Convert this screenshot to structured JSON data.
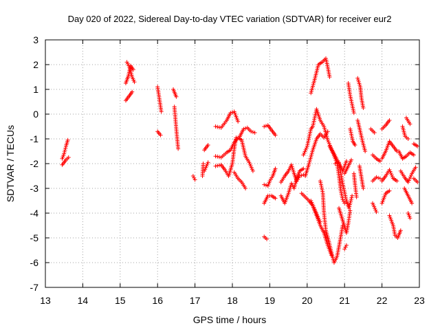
{
  "chart_data": {
    "type": "scatter",
    "title": "Day 020 of 2022, Sidereal Day-to-day VTEC variation (SDTVAR) for receiver eur2",
    "xlabel": "GPS time / hours",
    "ylabel": "SDTVAR / TECUs",
    "xlim": [
      13,
      23
    ],
    "ylim": [
      -7,
      3
    ],
    "xticks": [
      "13",
      "14",
      "15",
      "16",
      "17",
      "18",
      "19",
      "20",
      "21",
      "22",
      "23"
    ],
    "yticks": [
      "3",
      "2",
      "1",
      "0",
      "-1",
      "-2",
      "-3",
      "-4",
      "-5",
      "-6",
      "-7"
    ],
    "grid": true,
    "marker": "+",
    "color": "#ff0000",
    "segments": [
      [
        [
          13.45,
          -1.8
        ],
        [
          13.5,
          -1.6
        ],
        [
          13.55,
          -1.3
        ],
        [
          13.6,
          -1.05
        ]
      ],
      [
        [
          13.45,
          -2.05
        ],
        [
          13.55,
          -1.85
        ],
        [
          13.62,
          -1.75
        ]
      ],
      [
        [
          15.15,
          0.55
        ],
        [
          15.25,
          0.75
        ],
        [
          15.32,
          0.9
        ]
      ],
      [
        [
          15.15,
          1.25
        ],
        [
          15.22,
          1.55
        ],
        [
          15.28,
          1.95
        ],
        [
          15.35,
          1.8
        ]
      ],
      [
        [
          15.18,
          2.1
        ],
        [
          15.25,
          1.9
        ],
        [
          15.32,
          1.5
        ],
        [
          15.38,
          1.3
        ]
      ],
      [
        [
          16.0,
          1.1
        ],
        [
          16.06,
          0.5
        ],
        [
          16.1,
          0.1
        ]
      ],
      [
        [
          16.0,
          -0.7
        ],
        [
          16.08,
          -0.85
        ]
      ],
      [
        [
          16.42,
          1.0
        ],
        [
          16.5,
          0.7
        ]
      ],
      [
        [
          16.45,
          0.3
        ],
        [
          16.5,
          -0.6
        ],
        [
          16.55,
          -1.4
        ]
      ],
      [
        [
          16.95,
          -2.5
        ],
        [
          17.0,
          -2.65
        ]
      ],
      [
        [
          17.2,
          -2.5
        ],
        [
          17.22,
          -2.0
        ]
      ],
      [
        [
          17.25,
          -1.45
        ],
        [
          17.35,
          -1.25
        ]
      ],
      [
        [
          17.25,
          -2.3
        ],
        [
          17.35,
          -1.95
        ]
      ],
      [
        [
          17.55,
          -0.5
        ],
        [
          17.7,
          -0.55
        ],
        [
          17.85,
          -0.25
        ],
        [
          17.95,
          0.05
        ],
        [
          18.05,
          0.1
        ],
        [
          18.15,
          -0.3
        ]
      ],
      [
        [
          17.55,
          -1.7
        ],
        [
          17.7,
          -1.75
        ],
        [
          17.85,
          -1.55
        ],
        [
          17.95,
          -1.45
        ],
        [
          18.05,
          -1.15
        ],
        [
          18.15,
          -0.95
        ],
        [
          18.25,
          -1.05
        ],
        [
          18.35,
          -1.7
        ],
        [
          18.45,
          -1.95
        ],
        [
          18.55,
          -2.3
        ]
      ],
      [
        [
          17.55,
          -2.1
        ],
        [
          17.7,
          -2.05
        ],
        [
          17.8,
          -2.25
        ],
        [
          17.9,
          -2.5
        ],
        [
          18.0,
          -2.0
        ],
        [
          18.05,
          -1.4
        ],
        [
          18.1,
          -0.95
        ]
      ],
      [
        [
          18.05,
          -2.35
        ],
        [
          18.15,
          -2.6
        ],
        [
          18.25,
          -2.75
        ],
        [
          18.35,
          -3.0
        ]
      ],
      [
        [
          18.2,
          -0.9
        ],
        [
          18.3,
          -0.6
        ],
        [
          18.4,
          -0.55
        ],
        [
          18.5,
          -0.7
        ],
        [
          18.6,
          -0.75
        ]
      ],
      [
        [
          18.85,
          -2.85
        ],
        [
          18.95,
          -2.9
        ],
        [
          19.0,
          -2.7
        ],
        [
          19.08,
          -2.5
        ],
        [
          19.15,
          -2.2
        ]
      ],
      [
        [
          18.85,
          -0.5
        ],
        [
          18.95,
          -0.45
        ],
        [
          19.05,
          -0.65
        ],
        [
          19.15,
          -0.85
        ]
      ],
      [
        [
          18.85,
          -4.95
        ],
        [
          18.92,
          -5.05
        ]
      ],
      [
        [
          18.85,
          -3.6
        ],
        [
          18.95,
          -3.3
        ],
        [
          19.05,
          -3.3
        ],
        [
          19.15,
          -3.4
        ]
      ],
      [
        [
          19.3,
          -2.75
        ],
        [
          19.4,
          -2.5
        ],
        [
          19.5,
          -2.3
        ],
        [
          19.58,
          -2.05
        ],
        [
          19.65,
          -2.4
        ],
        [
          19.72,
          -2.7
        ],
        [
          19.8,
          -2.5
        ],
        [
          19.9,
          -2.45
        ]
      ],
      [
        [
          19.3,
          -3.3
        ],
        [
          19.4,
          -3.6
        ],
        [
          19.5,
          -3.2
        ],
        [
          19.58,
          -2.8
        ],
        [
          19.65,
          -3.0
        ],
        [
          19.72,
          -2.6
        ],
        [
          19.8,
          -2.3
        ],
        [
          19.9,
          -2.2
        ]
      ],
      [
        [
          19.85,
          -3.2
        ],
        [
          19.95,
          -3.35
        ],
        [
          20.05,
          -3.5
        ],
        [
          20.15,
          -3.7
        ],
        [
          20.25,
          -4.1
        ],
        [
          20.35,
          -4.5
        ],
        [
          20.45,
          -4.8
        ],
        [
          20.55,
          -5.3
        ],
        [
          20.65,
          -5.7
        ]
      ],
      [
        [
          19.9,
          -1.65
        ],
        [
          20.0,
          -1.3
        ],
        [
          20.1,
          -0.6
        ],
        [
          20.15,
          -0.5
        ],
        [
          20.25,
          0.2
        ],
        [
          20.35,
          -0.25
        ],
        [
          20.45,
          -0.5
        ],
        [
          20.55,
          -1.05
        ],
        [
          20.65,
          -1.4
        ],
        [
          20.75,
          -1.7
        ],
        [
          20.85,
          -2.0
        ],
        [
          20.95,
          -2.3
        ],
        [
          21.05,
          -1.9
        ]
      ],
      [
        [
          20.1,
          0.85
        ],
        [
          20.2,
          1.4
        ],
        [
          20.3,
          2.0
        ],
        [
          20.4,
          2.1
        ],
        [
          20.5,
          2.25
        ],
        [
          20.55,
          1.9
        ],
        [
          20.6,
          1.5
        ]
      ],
      [
        [
          19.95,
          -2.5
        ],
        [
          20.05,
          -2.0
        ],
        [
          20.15,
          -1.45
        ],
        [
          20.25,
          -1.0
        ],
        [
          20.35,
          -0.8
        ],
        [
          20.45,
          -0.95
        ],
        [
          20.55,
          -0.7
        ]
      ],
      [
        [
          20.1,
          -3.5
        ],
        [
          20.2,
          -3.85
        ],
        [
          20.3,
          -4.2
        ],
        [
          20.35,
          -4.35
        ]
      ],
      [
        [
          20.35,
          -2.7
        ],
        [
          20.42,
          -3.2
        ],
        [
          20.45,
          -4.0
        ],
        [
          20.5,
          -4.7
        ],
        [
          20.58,
          -5.15
        ],
        [
          20.65,
          -5.6
        ],
        [
          20.72,
          -6.0
        ],
        [
          20.8,
          -5.75
        ],
        [
          20.88,
          -5.1
        ],
        [
          20.95,
          -4.5
        ]
      ],
      [
        [
          20.6,
          -1.3
        ],
        [
          20.7,
          -1.6
        ],
        [
          20.8,
          -2.0
        ],
        [
          20.85,
          -2.5
        ],
        [
          20.9,
          -3.1
        ],
        [
          20.95,
          -3.45
        ],
        [
          21.0,
          -3.6
        ]
      ],
      [
        [
          20.75,
          -2.0
        ],
        [
          20.85,
          -1.95
        ],
        [
          20.95,
          -2.8
        ],
        [
          21.05,
          -3.5
        ],
        [
          21.12,
          -3.8
        ],
        [
          21.2,
          -3.3
        ]
      ],
      [
        [
          20.85,
          -3.8
        ],
        [
          20.95,
          -4.3
        ],
        [
          21.05,
          -4.8
        ],
        [
          21.1,
          -4.4
        ],
        [
          21.15,
          -3.9
        ]
      ],
      [
        [
          21.0,
          -5.45
        ],
        [
          21.05,
          -5.3
        ]
      ],
      [
        [
          21.0,
          -2.4
        ],
        [
          21.1,
          -2.1
        ],
        [
          21.18,
          -1.85
        ]
      ],
      [
        [
          21.1,
          1.25
        ],
        [
          21.15,
          0.75
        ],
        [
          21.2,
          0.4
        ],
        [
          21.25,
          0.05
        ]
      ],
      [
        [
          21.15,
          -0.6
        ],
        [
          21.22,
          -1.1
        ],
        [
          21.28,
          -1.25
        ]
      ],
      [
        [
          21.25,
          -2.4
        ],
        [
          21.28,
          -2.85
        ],
        [
          21.32,
          -3.35
        ]
      ],
      [
        [
          21.35,
          1.45
        ],
        [
          21.42,
          1.1
        ],
        [
          21.45,
          0.65
        ],
        [
          21.5,
          0.25
        ]
      ],
      [
        [
          21.35,
          -0.25
        ],
        [
          21.42,
          -0.7
        ],
        [
          21.48,
          -1.1
        ],
        [
          21.55,
          -1.5
        ]
      ],
      [
        [
          21.4,
          -2.1
        ],
        [
          21.45,
          -2.55
        ],
        [
          21.5,
          -3.0
        ]
      ],
      [
        [
          21.75,
          -2.7
        ],
        [
          21.85,
          -2.55
        ],
        [
          21.95,
          -2.6
        ]
      ],
      [
        [
          21.75,
          -1.65
        ],
        [
          21.85,
          -1.8
        ],
        [
          21.95,
          -1.9
        ]
      ],
      [
        [
          21.7,
          -0.6
        ],
        [
          21.8,
          -0.75
        ]
      ],
      [
        [
          21.75,
          -3.6
        ],
        [
          21.85,
          -3.95
        ]
      ],
      [
        [
          22.0,
          -0.6
        ],
        [
          22.1,
          -0.45
        ],
        [
          22.2,
          -0.25
        ]
      ],
      [
        [
          22.0,
          -1.8
        ],
        [
          22.1,
          -1.5
        ],
        [
          22.2,
          -1.1
        ],
        [
          22.3,
          -1.3
        ],
        [
          22.4,
          -1.5
        ]
      ],
      [
        [
          22.0,
          -2.7
        ],
        [
          22.1,
          -2.5
        ],
        [
          22.2,
          -2.25
        ],
        [
          22.3,
          -2.6
        ],
        [
          22.4,
          -2.7
        ]
      ],
      [
        [
          22.0,
          -3.6
        ],
        [
          22.1,
          -3.2
        ],
        [
          22.2,
          -3.1
        ]
      ],
      [
        [
          22.2,
          -4.1
        ],
        [
          22.3,
          -4.5
        ],
        [
          22.35,
          -4.9
        ],
        [
          22.42,
          -5.0
        ],
        [
          22.5,
          -4.7
        ]
      ],
      [
        [
          22.45,
          -1.5
        ],
        [
          22.55,
          -1.8
        ],
        [
          22.65,
          -1.7
        ],
        [
          22.75,
          -1.55
        ],
        [
          22.85,
          -1.65
        ]
      ],
      [
        [
          22.5,
          -2.3
        ],
        [
          22.6,
          -2.55
        ],
        [
          22.7,
          -2.75
        ],
        [
          22.8,
          -2.4
        ],
        [
          22.9,
          -2.15
        ]
      ],
      [
        [
          22.55,
          -0.5
        ],
        [
          22.62,
          -0.9
        ],
        [
          22.7,
          -1.0
        ]
      ],
      [
        [
          22.6,
          -3.0
        ],
        [
          22.7,
          -3.3
        ],
        [
          22.8,
          -3.6
        ]
      ],
      [
        [
          22.65,
          -0.15
        ],
        [
          22.75,
          -0.4
        ]
      ],
      [
        [
          22.7,
          -4.0
        ],
        [
          22.75,
          -4.2
        ]
      ],
      [
        [
          22.85,
          -1.2
        ],
        [
          22.95,
          -1.3
        ]
      ],
      [
        [
          22.85,
          -2.6
        ],
        [
          22.95,
          -2.75
        ]
      ]
    ]
  }
}
